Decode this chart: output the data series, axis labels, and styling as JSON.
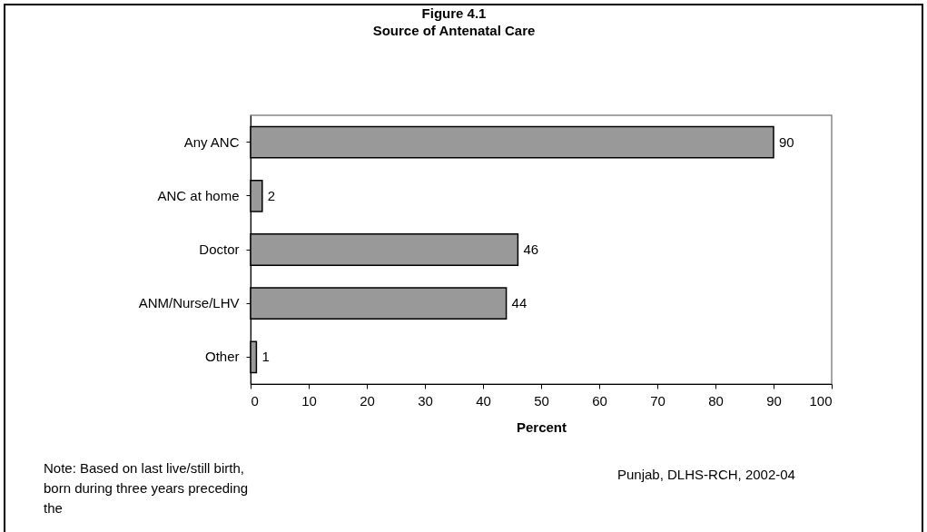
{
  "chart_data": {
    "type": "bar",
    "orientation": "horizontal",
    "title": "Figure 4.1",
    "subtitle": "Source of Antenatal Care",
    "xlabel": "Percent",
    "categories": [
      "Any ANC",
      "ANC at home",
      "Doctor",
      "ANM/Nurse/LHV",
      "Other"
    ],
    "values": [
      90,
      2,
      46,
      44,
      1
    ],
    "color": "#999999",
    "data_labels": true,
    "xlim": [
      0,
      100
    ],
    "xticks": [
      0,
      10,
      20,
      30,
      40,
      50,
      60,
      70,
      80,
      90,
      100
    ],
    "grid": false,
    "annotations": [
      "Note: Based on last live/still birth, born during three years preceding the",
      "Punjab, DLHS-RCH, 2002-04"
    ]
  }
}
